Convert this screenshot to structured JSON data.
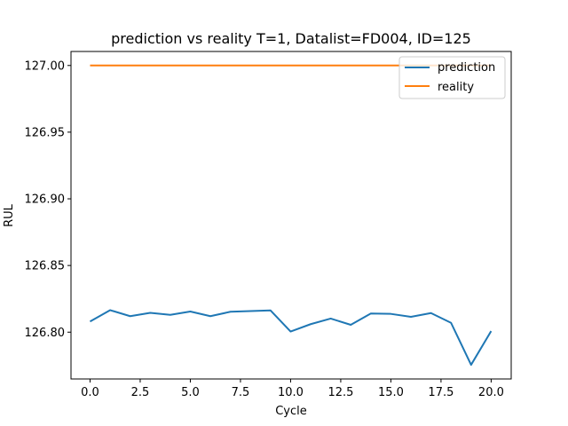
{
  "chart_data": {
    "type": "line",
    "title": "prediction vs reality T=1, Datalist=FD004, ID=125",
    "xlabel": "Cycle",
    "ylabel": "RUL",
    "xlim": [
      -0.95,
      21.0
    ],
    "ylim": [
      126.7649,
      127.0105
    ],
    "xticks": [
      0.0,
      2.5,
      5.0,
      7.5,
      10.0,
      12.5,
      15.0,
      17.5,
      20.0
    ],
    "xtick_labels": [
      "0.0",
      "2.5",
      "5.0",
      "7.5",
      "10.0",
      "12.5",
      "15.0",
      "17.5",
      "20.0"
    ],
    "yticks": [
      126.8,
      126.85,
      126.9,
      126.95,
      127.0
    ],
    "ytick_labels": [
      "126.80",
      "126.85",
      "126.90",
      "126.95",
      "127.00"
    ],
    "grid": false,
    "legend_position": "top-right",
    "x": [
      0,
      1,
      2,
      3,
      4,
      5,
      6,
      7,
      8,
      9,
      10,
      11,
      12,
      13,
      14,
      15,
      16,
      17,
      18,
      19,
      20
    ],
    "series": [
      {
        "name": "prediction",
        "color": "#1f77b4",
        "values": [
          126.808,
          126.8165,
          126.812,
          126.8145,
          126.813,
          126.8155,
          126.812,
          126.8153,
          126.8158,
          126.8163,
          126.8005,
          126.806,
          126.8102,
          126.8055,
          126.814,
          126.8137,
          126.8115,
          126.8143,
          126.807,
          126.7755,
          126.8008
        ]
      },
      {
        "name": "reality",
        "color": "#ff7f0e",
        "values": [
          127.0,
          127.0,
          127.0,
          127.0,
          127.0,
          127.0,
          127.0,
          127.0,
          127.0,
          127.0,
          127.0,
          127.0,
          127.0,
          127.0,
          127.0,
          127.0,
          127.0,
          127.0,
          127.0,
          127.0,
          127.0
        ]
      }
    ]
  }
}
